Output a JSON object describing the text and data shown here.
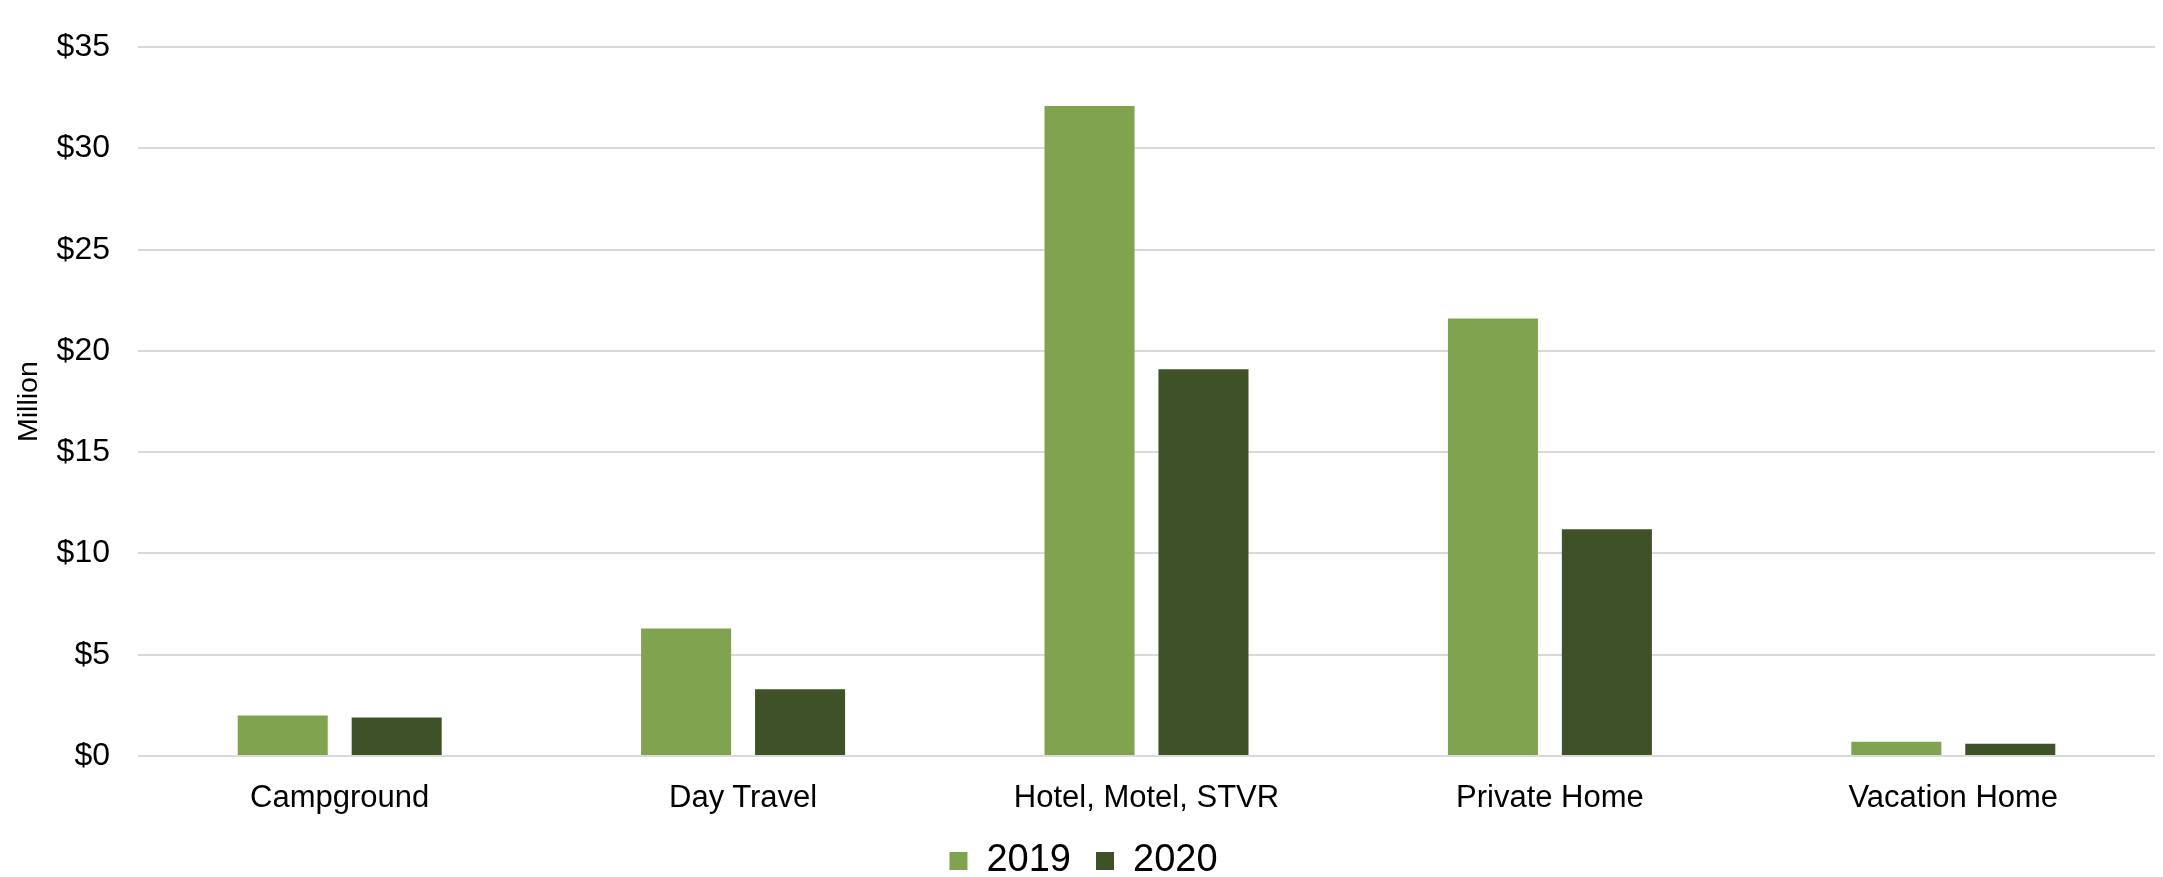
{
  "chart_data": {
    "type": "bar",
    "ylabel": "Million",
    "categories": [
      "Campground",
      "Day Travel",
      "Hotel, Motel, STVR",
      "Private Home",
      "Vacation Home"
    ],
    "series": [
      {
        "name": "2019",
        "color": "#80a34f",
        "values": [
          2.0,
          6.3,
          32.1,
          21.6,
          0.7
        ]
      },
      {
        "name": "2020",
        "color": "#3f5227",
        "values": [
          1.9,
          3.3,
          19.1,
          11.2,
          0.6
        ]
      }
    ],
    "ylim": [
      0,
      35
    ],
    "yticks": [
      {
        "value": 0,
        "label": "$0"
      },
      {
        "value": 5,
        "label": "$5"
      },
      {
        "value": 10,
        "label": "$10"
      },
      {
        "value": 15,
        "label": "$15"
      },
      {
        "value": 20,
        "label": "$20"
      },
      {
        "value": 25,
        "label": "$25"
      },
      {
        "value": 30,
        "label": "$30"
      },
      {
        "value": 35,
        "label": "$35"
      }
    ],
    "grid": "y",
    "legend": "bottom"
  }
}
